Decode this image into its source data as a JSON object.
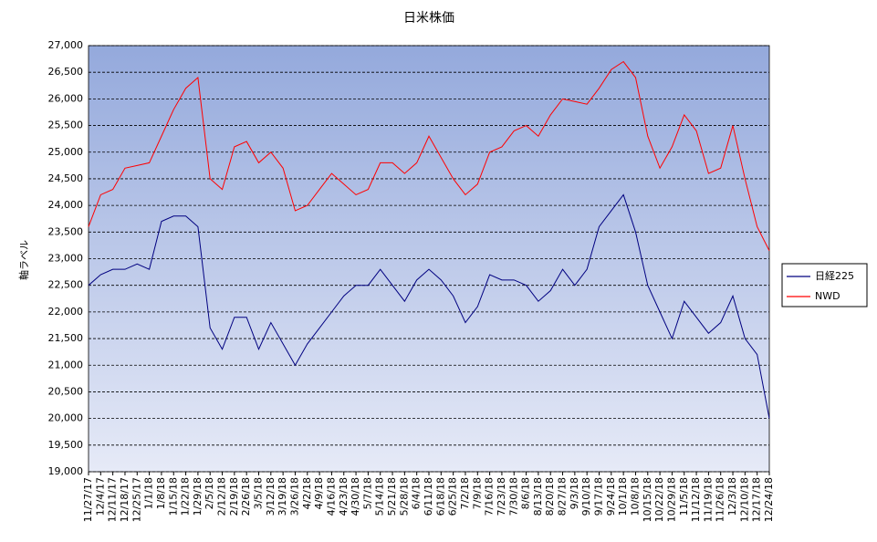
{
  "chart_data": {
    "type": "line",
    "title": "日米株価",
    "y_label": "軸ラベル",
    "categories": [
      "11/27/17",
      "12/4/17",
      "12/11/17",
      "12/18/17",
      "12/25/17",
      "1/1/18",
      "1/8/18",
      "1/15/18",
      "1/22/18",
      "1/29/18",
      "2/5/18",
      "2/12/18",
      "2/19/18",
      "2/26/18",
      "3/5/18",
      "3/12/18",
      "3/19/18",
      "3/26/18",
      "4/2/18",
      "4/9/18",
      "4/16/18",
      "4/23/18",
      "4/30/18",
      "5/7/18",
      "5/14/18",
      "5/21/18",
      "5/28/18",
      "6/4/18",
      "6/11/18",
      "6/18/18",
      "6/25/18",
      "7/2/18",
      "7/9/18",
      "7/16/18",
      "7/23/18",
      "7/30/18",
      "8/6/18",
      "8/13/18",
      "8/20/18",
      "8/27/18",
      "9/3/18",
      "9/10/18",
      "9/17/18",
      "9/24/18",
      "10/1/18",
      "10/8/18",
      "10/15/18",
      "10/22/18",
      "10/29/18",
      "11/5/18",
      "11/12/18",
      "11/19/18",
      "11/26/18",
      "12/3/18",
      "12/10/18",
      "12/17/18",
      "12/24/18"
    ],
    "series": [
      {
        "name": "日経225",
        "color": "#000080",
        "values": [
          22500,
          22700,
          22800,
          22800,
          22900,
          22800,
          23700,
          23800,
          23800,
          23600,
          21700,
          21300,
          21900,
          21900,
          21300,
          21800,
          21400,
          21000,
          21400,
          21700,
          22000,
          22300,
          22500,
          22500,
          22800,
          22500,
          22200,
          22600,
          22800,
          22600,
          22300,
          21800,
          22100,
          22700,
          22600,
          22600,
          22500,
          22200,
          22400,
          22800,
          22500,
          22800,
          23600,
          23900,
          24200,
          23500,
          22500,
          22000,
          21500,
          22200,
          21900,
          21600,
          21800,
          22300,
          21500,
          21200,
          20000
        ]
      },
      {
        "name": "NWD",
        "color": "#ff0000",
        "values": [
          23600,
          24200,
          24300,
          24700,
          24750,
          24800,
          25300,
          25800,
          26200,
          26400,
          24500,
          24300,
          25100,
          25200,
          24800,
          25000,
          24700,
          23900,
          24000,
          24300,
          24600,
          24400,
          24200,
          24300,
          24800,
          24800,
          24600,
          24800,
          25300,
          24900,
          24500,
          24200,
          24400,
          25000,
          25100,
          25400,
          25500,
          25300,
          25700,
          26000,
          25950,
          25900,
          26200,
          26550,
          26700,
          26400,
          25300,
          24700,
          25100,
          25700,
          25400,
          24600,
          24700,
          25500,
          24500,
          23600,
          23150
        ]
      }
    ],
    "ylim": [
      19000,
      27000
    ],
    "yticks": [
      {
        "value": 19000,
        "label": "19,000"
      },
      {
        "value": 19500,
        "label": "19,500"
      },
      {
        "value": 20000,
        "label": "20,000"
      },
      {
        "value": 20500,
        "label": "20,500"
      },
      {
        "value": 21000,
        "label": "21,000"
      },
      {
        "value": 21500,
        "label": "21,500"
      },
      {
        "value": 22000,
        "label": "22,000"
      },
      {
        "value": 22500,
        "label": "22,500"
      },
      {
        "value": 23000,
        "label": "23,000"
      },
      {
        "value": 23500,
        "label": "23,500"
      },
      {
        "value": 24000,
        "label": "24,000"
      },
      {
        "value": 24500,
        "label": "24,500"
      },
      {
        "value": 25000,
        "label": "25,000"
      },
      {
        "value": 25500,
        "label": "25,500"
      },
      {
        "value": 26000,
        "label": "26,000"
      },
      {
        "value": 26500,
        "label": "26,500"
      },
      {
        "value": 27000,
        "label": "27,000"
      }
    ],
    "grid": true,
    "legend": "right"
  }
}
